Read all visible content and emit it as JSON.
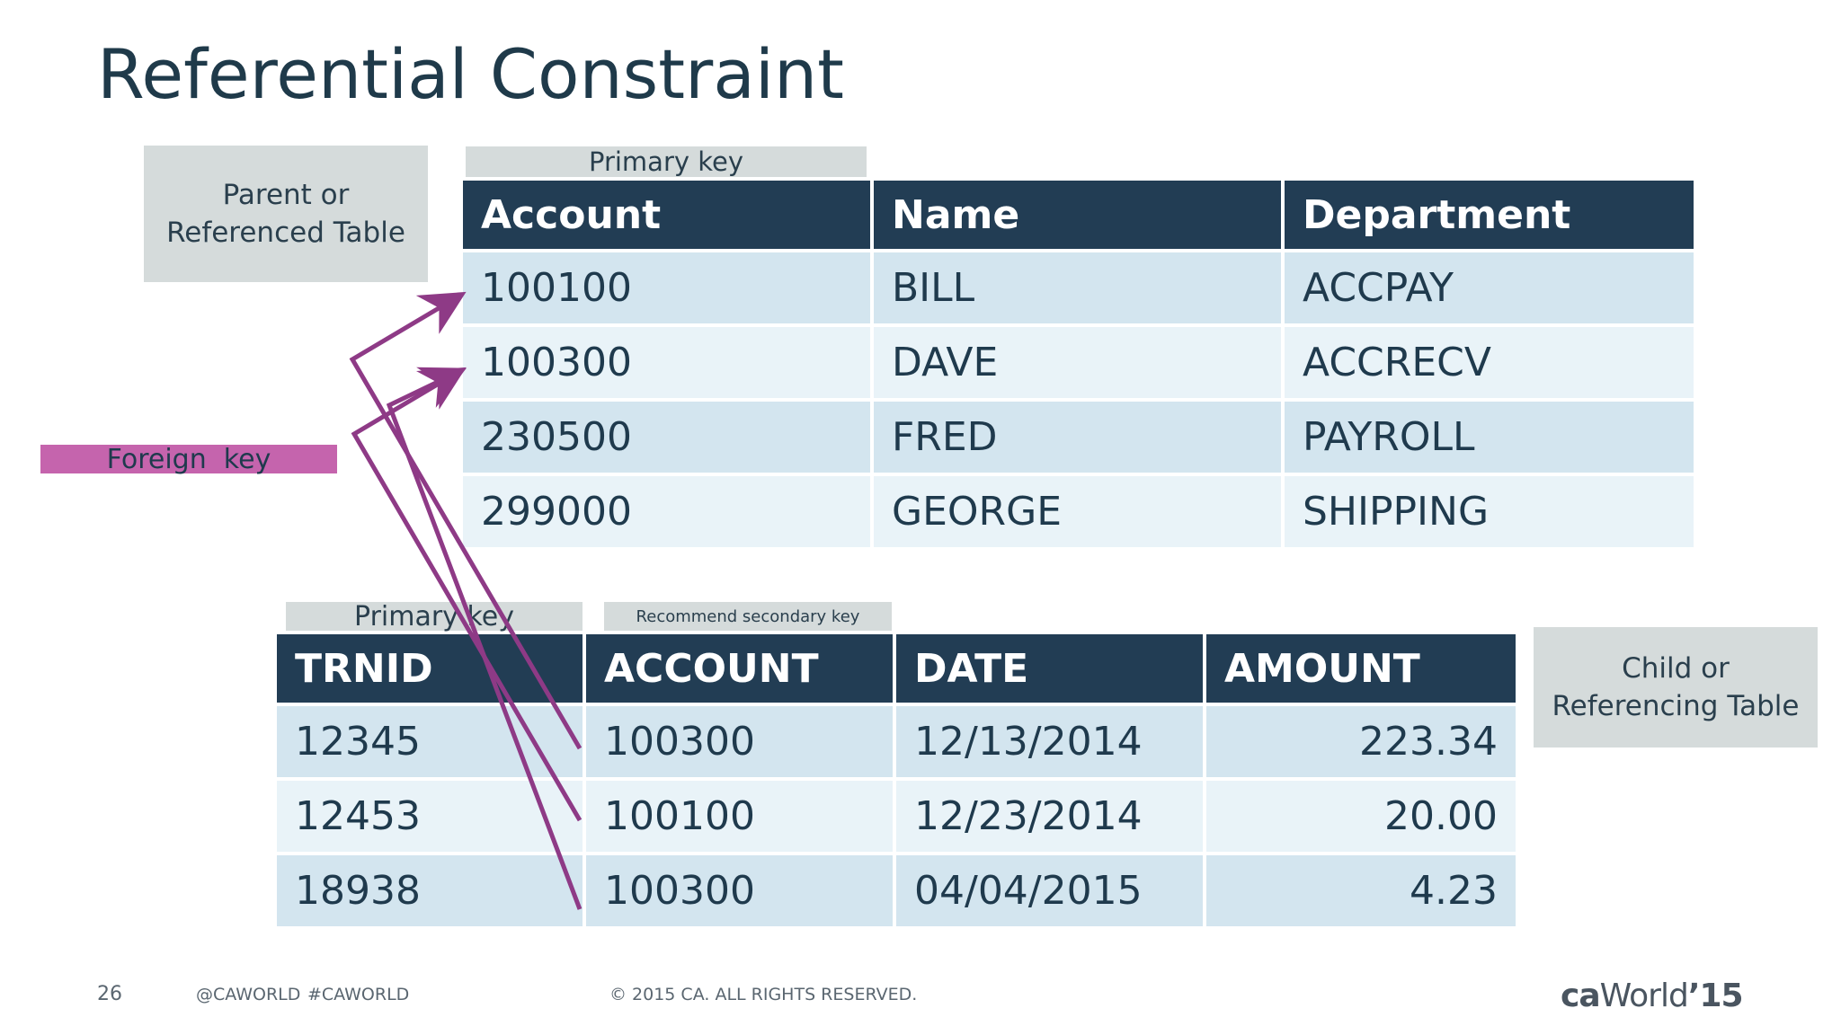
{
  "title": "Referential Constraint",
  "parent_box": {
    "line1": "Parent or",
    "line2": "Referenced Table"
  },
  "child_box": {
    "line1": "Child or",
    "line2": "Referencing Table"
  },
  "parent_pk_tag": "Primary key",
  "foreign_key_tag": "Foreign  key",
  "child_pk_tag": "Primary key",
  "child_secondary_tag": "Recommend secondary key",
  "parent_table": {
    "headers": [
      "Account",
      "Name",
      "Department"
    ],
    "rows": [
      [
        "100100",
        "BILL",
        "ACCPAY"
      ],
      [
        "100300",
        "DAVE",
        "ACCRECV"
      ],
      [
        "230500",
        "FRED",
        "PAYROLL"
      ],
      [
        "299000",
        "GEORGE",
        "SHIPPING"
      ]
    ]
  },
  "child_table": {
    "headers": [
      "TRNID",
      "ACCOUNT",
      "DATE",
      "AMOUNT"
    ],
    "rows": [
      [
        "12345",
        "100300",
        "12/13/2014",
        "223.34"
      ],
      [
        "12453",
        "100100",
        "12/23/2014",
        "20.00"
      ],
      [
        "18938",
        "100300",
        "04/04/2015",
        "4.23"
      ]
    ]
  },
  "footer": {
    "page_number": "26",
    "handle": "@CAWORLD",
    "hashtag": "#CAWORLD",
    "copyright": "© 2015 CA. ALL RIGHTS RESERVED.",
    "logo_ca": "ca",
    "logo_world": "World",
    "logo_year": "’15"
  },
  "colors": {
    "header": "#223d54",
    "row_odd": "#d3e5ef",
    "row_even": "#e9f3f8",
    "tag": "#d5dbdb",
    "foreign_key": "#c564ad",
    "arrow": "#8e3a86"
  }
}
